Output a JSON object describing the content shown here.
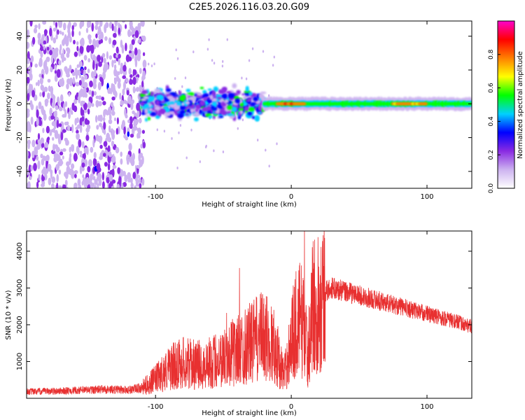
{
  "chart_data": [
    {
      "type": "heatmap",
      "panel": "spectrogram",
      "title": "C2E5.2026.116.03.20.G09",
      "xlabel": "Height of straight line (km)",
      "ylabel": "Frequency (Hz)",
      "xlim": [
        -195,
        133
      ],
      "ylim": [
        -50,
        49
      ],
      "xticks": [
        -100,
        0,
        100
      ],
      "xtick_labels": [
        "-100",
        "0",
        "100"
      ],
      "yticks": [
        -40,
        -20,
        0,
        20,
        40
      ],
      "ytick_labels": [
        "-40",
        "-20",
        "0",
        "20",
        "40"
      ],
      "colorbar": {
        "label": "Normalized spectral amplitude",
        "range": [
          0,
          1
        ],
        "ticks": [
          0.0,
          0.2,
          0.4,
          0.6,
          0.8
        ],
        "tick_labels": [
          "0.0",
          "0.2",
          "0.4",
          "0.6",
          "0.8"
        ],
        "colors": [
          "#ffffff",
          "#cdb3f0",
          "#8a2be2",
          "#0000ff",
          "#00d0ff",
          "#00ff00",
          "#ffff00",
          "#ff8000",
          "#ff0000",
          "#ff00cc"
        ]
      },
      "features": [
        {
          "x_range": [
            -195,
            -108
          ],
          "freq_range": [
            -50,
            49
          ],
          "amplitude": 0.15,
          "note": "scattered noise"
        },
        {
          "x_range": [
            -110,
            -20
          ],
          "freq_range": [
            -12,
            10
          ],
          "amplitude": 0.35
        },
        {
          "x_range": [
            -20,
            133
          ],
          "freq_range": [
            -4,
            4
          ],
          "amplitude": 0.55
        },
        {
          "x_range": [
            -10,
            10
          ],
          "freq_range": [
            -2,
            2
          ],
          "amplitude": 0.85
        },
        {
          "x_range": [
            75,
            100
          ],
          "freq_range": [
            -1,
            1
          ],
          "amplitude": 0.8
        }
      ]
    },
    {
      "type": "line",
      "panel": "snr",
      "xlabel": "Height of straight line (km)",
      "ylabel": "SNR (10 * v/v)",
      "xlim": [
        -195,
        133
      ],
      "ylim": [
        0,
        4550
      ],
      "xticks": [
        -100,
        0,
        100
      ],
      "xtick_labels": [
        "-100",
        "0",
        "100"
      ],
      "yticks": [
        1000,
        2000,
        3000,
        4000
      ],
      "ytick_labels": [
        "1000",
        "2000",
        "3000",
        "4000"
      ],
      "color": "#e83030",
      "x": [
        -195,
        -180,
        -160,
        -140,
        -120,
        -110,
        -100,
        -90,
        -80,
        -70,
        -60,
        -50,
        -40,
        -30,
        -20,
        -12,
        -8,
        -5,
        0,
        5,
        10,
        12,
        15,
        20,
        25,
        30,
        40,
        50,
        60,
        70,
        80,
        90,
        100,
        110,
        120,
        133
      ],
      "y": [
        180,
        190,
        210,
        240,
        230,
        280,
        520,
        820,
        980,
        900,
        960,
        1100,
        1300,
        1500,
        1700,
        1400,
        900,
        650,
        1600,
        2200,
        2000,
        1000,
        2400,
        2700,
        2900,
        3000,
        2900,
        2800,
        2700,
        2600,
        2500,
        2400,
        2300,
        2200,
        2100,
        1950
      ]
    }
  ]
}
